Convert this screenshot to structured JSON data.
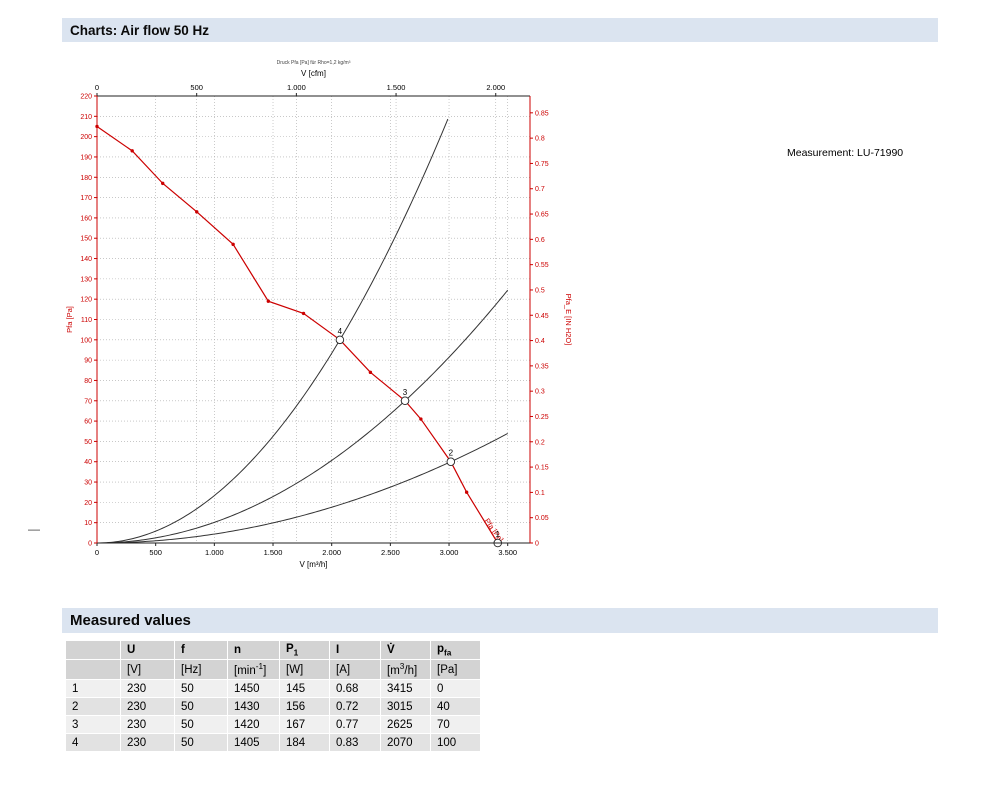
{
  "header": {
    "title": "Charts: Air flow 50 Hz"
  },
  "page": {
    "margin_dash": "—"
  },
  "chart_data": {
    "type": "line",
    "title": "Druck Pfa [Pa] für Rho=1,2 kg/m³",
    "measurement": "Measurement: LU-71990",
    "axis_color": "#cc0000",
    "grid": true,
    "legend_position": "none",
    "axes": {
      "x_bottom": {
        "label": "V [m³/h]",
        "ticks": [
          0,
          500,
          1000,
          1500,
          2000,
          2500,
          3000,
          3500
        ],
        "max": 3690
      },
      "x_top": {
        "label": "V [cfm]",
        "ticks": [
          0,
          500,
          1000,
          1500,
          2000
        ],
        "m3h_per_cfm": 1.699
      },
      "y_left": {
        "label": "Pfa [Pa]",
        "tick_step": 10,
        "max": 220
      },
      "y_right": {
        "label": "Pfa_E [IN H2O]",
        "tick_step": 0.05,
        "tick_max": 0.85,
        "pa_per_inh2o": 249.08
      }
    },
    "series": [
      {
        "name": "Pfa [Pa]",
        "color": "#cc0000",
        "points": [
          [
            0,
            205
          ],
          [
            300,
            193
          ],
          [
            560,
            177
          ],
          [
            850,
            163
          ],
          [
            1160,
            147
          ],
          [
            1460,
            119
          ],
          [
            1760,
            113
          ],
          [
            2070,
            100
          ],
          [
            2330,
            84
          ],
          [
            2625,
            70
          ],
          [
            2760,
            61
          ],
          [
            3015,
            40
          ],
          [
            3150,
            25
          ],
          [
            3415,
            0
          ]
        ]
      }
    ],
    "system_curves": [
      {
        "through": [
          2070,
          100
        ],
        "x_end": 2990
      },
      {
        "through": [
          2625,
          70
        ],
        "x_end": 3500
      },
      {
        "through": [
          3015,
          40
        ],
        "x_end": 3500
      }
    ],
    "operating_points": [
      {
        "label": "1",
        "x": 3415,
        "y": 0
      },
      {
        "label": "2",
        "x": 3015,
        "y": 40
      },
      {
        "label": "3",
        "x": 2625,
        "y": 70
      },
      {
        "label": "4",
        "x": 2070,
        "y": 100
      }
    ],
    "curve_label": {
      "text": "Pfa [Pa]",
      "x": 3300,
      "y": 11,
      "angle": 55
    }
  },
  "table": {
    "section_title": "Measured values",
    "columns": [
      {
        "name": "",
        "unit": ""
      },
      {
        "name": "U",
        "unit": "[V]"
      },
      {
        "name": "f",
        "unit": "[Hz]"
      },
      {
        "name": "n",
        "unit": "[min<sup>-1</sup>]"
      },
      {
        "name": "P<sub>1</sub>",
        "unit": "[W]"
      },
      {
        "name": "I",
        "unit": "[A]"
      },
      {
        "name": "V̇",
        "unit": "[m<sup>3</sup>/h]"
      },
      {
        "name": "p<sub>fa</sub>",
        "unit": "[Pa]"
      }
    ],
    "rows": [
      [
        "1",
        "230",
        "50",
        "1450",
        "145",
        "0.68",
        "3415",
        "0"
      ],
      [
        "2",
        "230",
        "50",
        "1430",
        "156",
        "0.72",
        "3015",
        "40"
      ],
      [
        "3",
        "230",
        "50",
        "1420",
        "167",
        "0.77",
        "2625",
        "70"
      ],
      [
        "4",
        "230",
        "50",
        "1405",
        "184",
        "0.83",
        "2070",
        "100"
      ]
    ]
  }
}
